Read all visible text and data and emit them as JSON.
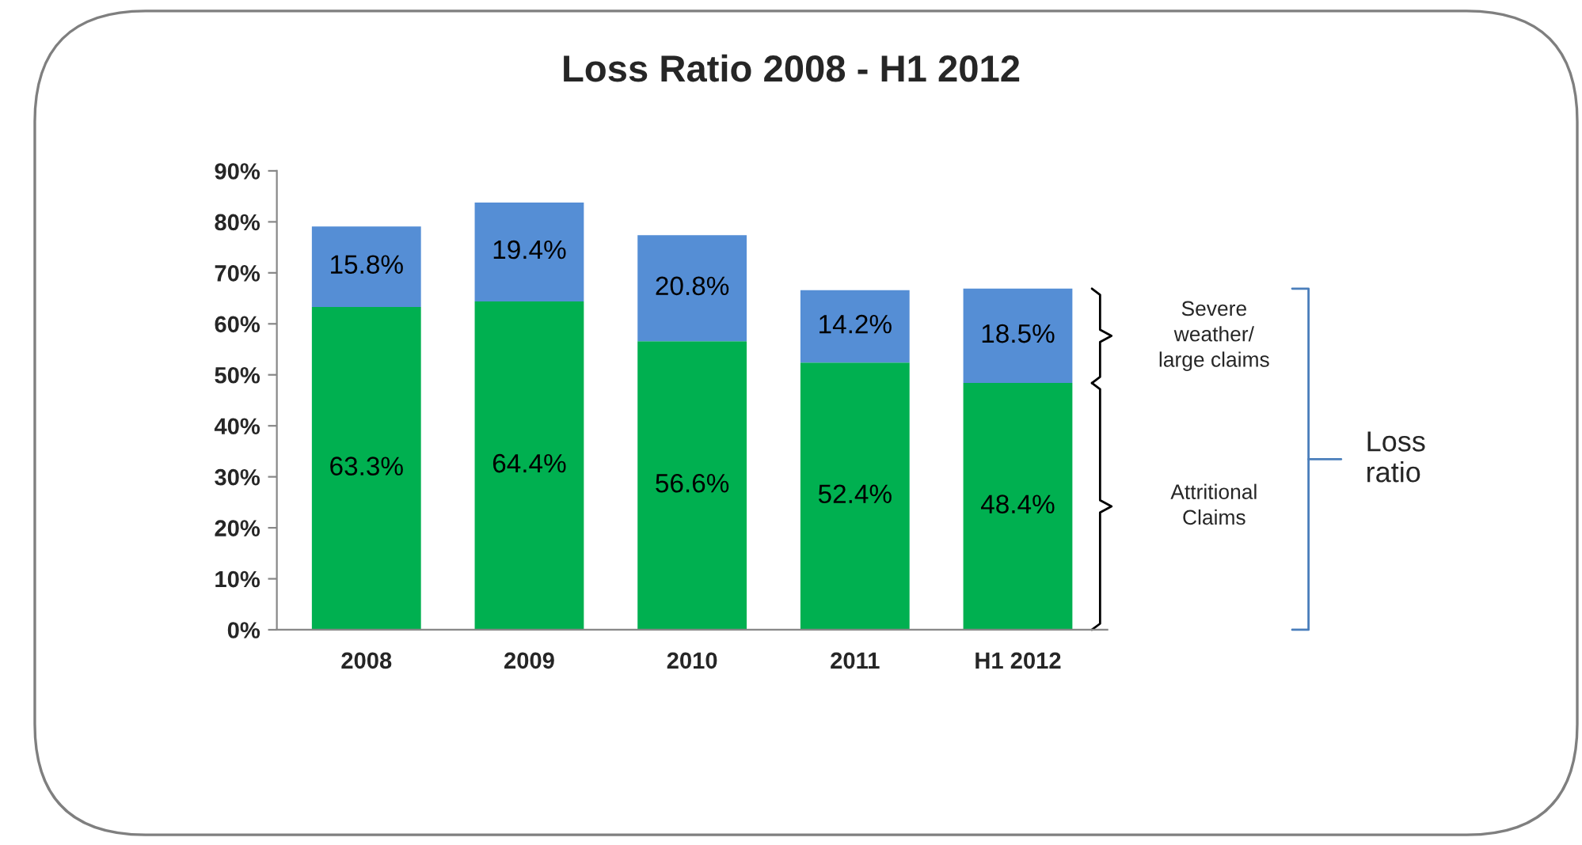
{
  "chart_data": {
    "type": "bar",
    "title": "Loss Ratio 2008 - H1 2012",
    "categories": [
      "2008",
      "2009",
      "2010",
      "2011",
      "H1 2012"
    ],
    "stacked": true,
    "series": [
      {
        "name": "Attritional Claims",
        "color": "#00b050",
        "values": [
          63.3,
          64.4,
          56.6,
          52.4,
          48.4
        ],
        "value_labels": [
          "63.3%",
          "64.4%",
          "56.6%",
          "52.4%",
          "48.4%"
        ]
      },
      {
        "name": "Severe weather/ large claims",
        "color": "#558ed5",
        "values": [
          15.8,
          19.4,
          20.8,
          14.2,
          18.5
        ],
        "value_labels": [
          "15.8%",
          "19.4%",
          "20.8%",
          "14.2%",
          "18.5%"
        ]
      }
    ],
    "ylim": [
      0,
      90
    ],
    "yticks": [
      {
        "value": 0,
        "label": "0%"
      },
      {
        "value": 10,
        "label": "10%"
      },
      {
        "value": 20,
        "label": "20%"
      },
      {
        "value": 30,
        "label": "30%"
      },
      {
        "value": 40,
        "label": "40%"
      },
      {
        "value": 50,
        "label": "50%"
      },
      {
        "value": 60,
        "label": "60%"
      },
      {
        "value": 70,
        "label": "70%"
      },
      {
        "value": 80,
        "label": "80%"
      },
      {
        "value": 90,
        "label": "90%"
      }
    ],
    "annotations": [
      "Loss ratio"
    ],
    "grid": false,
    "legend": false
  }
}
